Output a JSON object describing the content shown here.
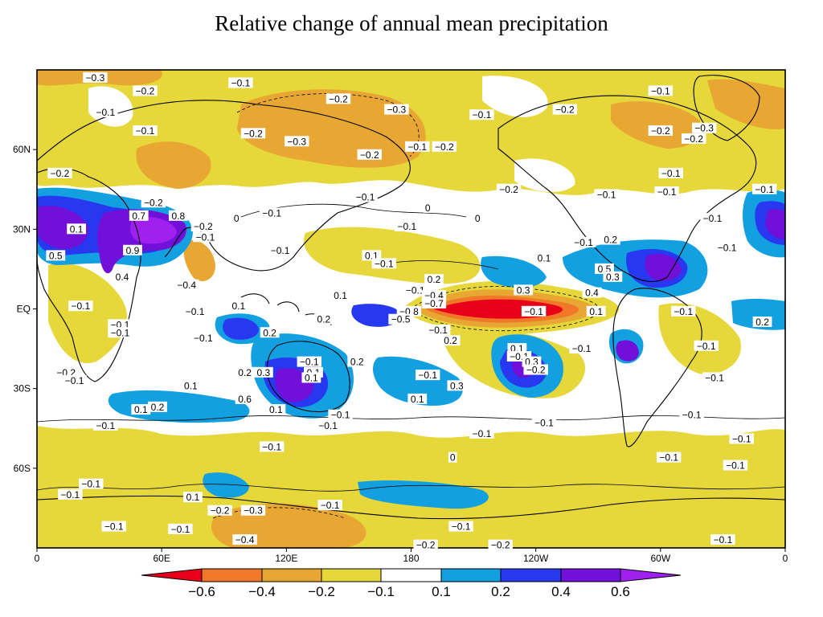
{
  "title": "Relative change of annual mean precipitation",
  "colors": {
    "lt_-0.6": "#e8001a",
    "-0.6_-0.4": "#f07828",
    "-0.4_-0.2": "#e8a632",
    "-0.2_-0.1": "#e6d73a",
    "-0.1_0.1": "#ffffff",
    "0.1_0.2": "#12a0e0",
    "0.2_0.4": "#2838f0",
    "0.4_0.6": "#7010d8",
    "gt_0.6": "#a020f0",
    "coast": "#000000"
  },
  "axes": {
    "x_ticks": [
      "0",
      "60E",
      "120E",
      "180",
      "120W",
      "60W",
      "0"
    ],
    "y_ticks": [
      "60N",
      "30N",
      "EQ",
      "30S",
      "60S"
    ]
  },
  "colorbar": {
    "labels": [
      "−0.6",
      "−0.4",
      "−0.2",
      "−0.1",
      "0.1",
      "0.2",
      "0.4",
      "0.6"
    ]
  },
  "contour_labels": [
    {
      "text": "−0.3",
      "lon": 28,
      "lat": 87
    },
    {
      "text": "−0.2",
      "lon": 52,
      "lat": 82
    },
    {
      "text": "−0.1",
      "lon": 98,
      "lat": 85
    },
    {
      "text": "−0.2",
      "lon": 145,
      "lat": 79
    },
    {
      "text": "−0.3",
      "lon": 173,
      "lat": 75
    },
    {
      "text": "−0.1",
      "lon": 214,
      "lat": 73
    },
    {
      "text": "−0.2",
      "lon": 254,
      "lat": 75
    },
    {
      "text": "−0.1",
      "lon": 300,
      "lat": 82
    },
    {
      "text": "−0.1",
      "lon": 33,
      "lat": 74
    },
    {
      "text": "−0.1",
      "lon": 52,
      "lat": 67
    },
    {
      "text": "−0.2",
      "lon": 104,
      "lat": 66
    },
    {
      "text": "−0.3",
      "lon": 125,
      "lat": 63
    },
    {
      "text": "−0.2",
      "lon": 160,
      "lat": 58
    },
    {
      "text": "−0.1",
      "lon": 183,
      "lat": 61
    },
    {
      "text": "−0.2",
      "lon": 196,
      "lat": 61
    },
    {
      "text": "−0.2",
      "lon": 300,
      "lat": 67
    },
    {
      "text": "−0.3",
      "lon": 321,
      "lat": 68
    },
    {
      "text": "−0.2",
      "lon": 316,
      "lat": 64
    },
    {
      "text": "−0.2",
      "lon": 11,
      "lat": 51
    },
    {
      "text": "−0.1",
      "lon": 305,
      "lat": 51
    },
    {
      "text": "−0.1",
      "lon": 158,
      "lat": 42
    },
    {
      "text": "−0.2",
      "lon": 227,
      "lat": 45
    },
    {
      "text": "−0.1",
      "lon": 274,
      "lat": 43
    },
    {
      "text": "−0.2",
      "lon": 56,
      "lat": 40
    },
    {
      "text": "0",
      "lon": 188,
      "lat": 38
    },
    {
      "text": "−0.1",
      "lon": 303,
      "lat": 44
    },
    {
      "text": "−0.1",
      "lon": 350,
      "lat": 45
    },
    {
      "text": "−0.1",
      "lon": 113,
      "lat": 36
    },
    {
      "text": "0",
      "lon": 96,
      "lat": 34
    },
    {
      "text": "0.1",
      "lon": 19,
      "lat": 30
    },
    {
      "text": "0.7",
      "lon": 49,
      "lat": 35
    },
    {
      "text": "0.8",
      "lon": 68,
      "lat": 35
    },
    {
      "text": "−0.2",
      "lon": 80,
      "lat": 31
    },
    {
      "text": "−0.1",
      "lon": 81,
      "lat": 27
    },
    {
      "text": "−0.1",
      "lon": 178,
      "lat": 31
    },
    {
      "text": "0",
      "lon": 212,
      "lat": 34
    },
    {
      "text": "−0.1",
      "lon": 263,
      "lat": 25
    },
    {
      "text": "0.2",
      "lon": 276,
      "lat": 26
    },
    {
      "text": "−0.1",
      "lon": 325,
      "lat": 34
    },
    {
      "text": "0.5",
      "lon": 9,
      "lat": 20
    },
    {
      "text": "0.9",
      "lon": 46,
      "lat": 22
    },
    {
      "text": "−0.1",
      "lon": 117,
      "lat": 22
    },
    {
      "text": "0.1",
      "lon": 161,
      "lat": 20
    },
    {
      "text": "−0.1",
      "lon": 167,
      "lat": 17
    },
    {
      "text": "−0.1",
      "lon": 332,
      "lat": 23
    },
    {
      "text": "0.5",
      "lon": 273,
      "lat": 15
    },
    {
      "text": "0.3",
      "lon": 277,
      "lat": 12
    },
    {
      "text": "0.4",
      "lon": 41,
      "lat": 12
    },
    {
      "text": "−0.4",
      "lon": 72,
      "lat": 9
    },
    {
      "text": "0.1",
      "lon": 244,
      "lat": 19
    },
    {
      "text": "0.2",
      "lon": 191,
      "lat": 11
    },
    {
      "text": "−0.1",
      "lon": 182,
      "lat": 7
    },
    {
      "text": "0.1",
      "lon": 146,
      "lat": 5
    },
    {
      "text": "0.3",
      "lon": 234,
      "lat": 7
    },
    {
      "text": "0.4",
      "lon": 267,
      "lat": 6
    },
    {
      "text": "−0.4",
      "lon": 191,
      "lat": 5
    },
    {
      "text": "−0.7",
      "lon": 191,
      "lat": 2
    },
    {
      "text": "−0.8",
      "lon": 179,
      "lat": -1
    },
    {
      "text": "−0.5",
      "lon": 175,
      "lat": -4
    },
    {
      "text": "−0.1",
      "lon": 21,
      "lat": 1
    },
    {
      "text": "0.1",
      "lon": 97,
      "lat": 1
    },
    {
      "text": "−0.1",
      "lon": 76,
      "lat": -1
    },
    {
      "text": "0.2",
      "lon": 138,
      "lat": -4
    },
    {
      "text": "−0.1",
      "lon": 239,
      "lat": -1
    },
    {
      "text": "0.1",
      "lon": 269,
      "lat": -1
    },
    {
      "text": "−0.1",
      "lon": 311,
      "lat": -1
    },
    {
      "text": "0.2",
      "lon": 349,
      "lat": -5
    },
    {
      "text": "−0.1",
      "lon": 40,
      "lat": -6
    },
    {
      "text": "−0.1",
      "lon": 40,
      "lat": -9
    },
    {
      "text": "−0.1",
      "lon": 80,
      "lat": -11
    },
    {
      "text": "0.2",
      "lon": 112,
      "lat": -9
    },
    {
      "text": "−0.1",
      "lon": 193,
      "lat": -8
    },
    {
      "text": "0.2",
      "lon": 199,
      "lat": -12
    },
    {
      "text": "0.1",
      "lon": 231,
      "lat": -15
    },
    {
      "text": "−0.1",
      "lon": 262,
      "lat": -15
    },
    {
      "text": "−0.1",
      "lon": 232,
      "lat": -18
    },
    {
      "text": "−0.1",
      "lon": 322,
      "lat": -14
    },
    {
      "text": "0.3",
      "lon": 238,
      "lat": -20
    },
    {
      "text": "−0.2",
      "lon": 240,
      "lat": -23
    },
    {
      "text": "−0.1",
      "lon": 131,
      "lat": -20
    },
    {
      "text": "0.1",
      "lon": 133,
      "lat": -24
    },
    {
      "text": "0.2",
      "lon": 154,
      "lat": -20
    },
    {
      "text": "−0.2",
      "lon": 14,
      "lat": -24
    },
    {
      "text": "−0.1",
      "lon": 18,
      "lat": -27
    },
    {
      "text": "0.2",
      "lon": 100,
      "lat": -24
    },
    {
      "text": "0.3",
      "lon": 109,
      "lat": -24
    },
    {
      "text": "0.1",
      "lon": 132,
      "lat": -26
    },
    {
      "text": "−0.1",
      "lon": 188,
      "lat": -25
    },
    {
      "text": "0.3",
      "lon": 202,
      "lat": -29
    },
    {
      "text": "−0.1",
      "lon": 326,
      "lat": -26
    },
    {
      "text": "0.1",
      "lon": 74,
      "lat": -29
    },
    {
      "text": "0.6",
      "lon": 100,
      "lat": -34
    },
    {
      "text": "0.1",
      "lon": 115,
      "lat": -38
    },
    {
      "text": "0.1",
      "lon": 183,
      "lat": -34
    },
    {
      "text": "0.1",
      "lon": 50,
      "lat": -38
    },
    {
      "text": "0.2",
      "lon": 58,
      "lat": -37
    },
    {
      "text": "−0.1",
      "lon": 146,
      "lat": -40
    },
    {
      "text": "−0.1",
      "lon": 140,
      "lat": -44
    },
    {
      "text": "−0.1",
      "lon": 33,
      "lat": -44
    },
    {
      "text": "−0.1",
      "lon": 214,
      "lat": -47
    },
    {
      "text": "−0.1",
      "lon": 244,
      "lat": -43
    },
    {
      "text": "−0.1",
      "lon": 315,
      "lat": -40
    },
    {
      "text": "−0.1",
      "lon": 339,
      "lat": -49
    },
    {
      "text": "−0.1",
      "lon": 113,
      "lat": -52
    },
    {
      "text": "0",
      "lon": 200,
      "lat": -56
    },
    {
      "text": "−0.1",
      "lon": 304,
      "lat": -56
    },
    {
      "text": "−0.1",
      "lon": 336,
      "lat": -59
    },
    {
      "text": "−0.1",
      "lon": 26,
      "lat": -66
    },
    {
      "text": "−0.1",
      "lon": 16,
      "lat": -70
    },
    {
      "text": "0.1",
      "lon": 75,
      "lat": -71
    },
    {
      "text": "−0.2",
      "lon": 88,
      "lat": -76
    },
    {
      "text": "−0.3",
      "lon": 104,
      "lat": -76
    },
    {
      "text": "−0.1",
      "lon": 141,
      "lat": -74
    },
    {
      "text": "−0.1",
      "lon": 37,
      "lat": -82
    },
    {
      "text": "−0.1",
      "lon": 69,
      "lat": -83
    },
    {
      "text": "−0.4",
      "lon": 100,
      "lat": -87
    },
    {
      "text": "−0.1",
      "lon": 204,
      "lat": -82
    },
    {
      "text": "−0.2",
      "lon": 187,
      "lat": -89
    },
    {
      "text": "−0.2",
      "lon": 223,
      "lat": -89
    },
    {
      "text": "−0.1",
      "lon": 330,
      "lat": -87
    }
  ]
}
